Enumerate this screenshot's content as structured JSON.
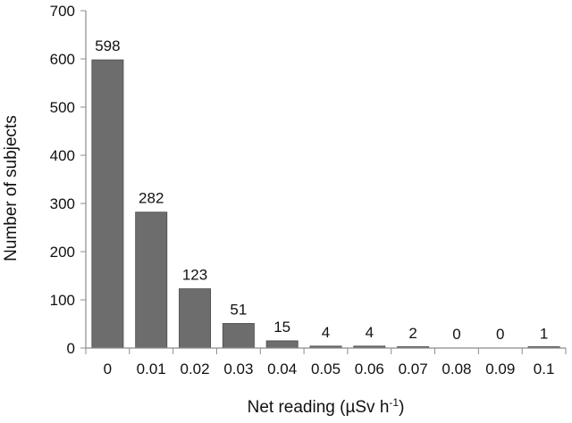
{
  "chart_data": {
    "type": "bar",
    "title": "",
    "xlabel": "Net reading (µSv h⁻¹)",
    "xlabel_main": "Net reading (",
    "xlabel_unit": "µSv h",
    "xlabel_sup": "-1",
    "xlabel_close": ")",
    "ylabel": "Number of subjects",
    "categories": [
      "0",
      "0.01",
      "0.02",
      "0.03",
      "0.04",
      "0.05",
      "0.06",
      "0.07",
      "0.08",
      "0.09",
      "0.1"
    ],
    "values": [
      598,
      282,
      123,
      51,
      15,
      4,
      4,
      2,
      0,
      0,
      1
    ],
    "data_labels": [
      "598",
      "282",
      "123",
      "51",
      "15",
      "4",
      "4",
      "2",
      "0",
      "0",
      "1"
    ],
    "ylim": [
      0,
      700
    ],
    "yticks": [
      0,
      100,
      200,
      300,
      400,
      500,
      600,
      700
    ],
    "grid": false,
    "legend": "none",
    "colors": {
      "bar": "#6d6d6d",
      "bar_edge": "#4a4a4a",
      "axis": "#8c8c8c",
      "text": "#111111"
    }
  }
}
